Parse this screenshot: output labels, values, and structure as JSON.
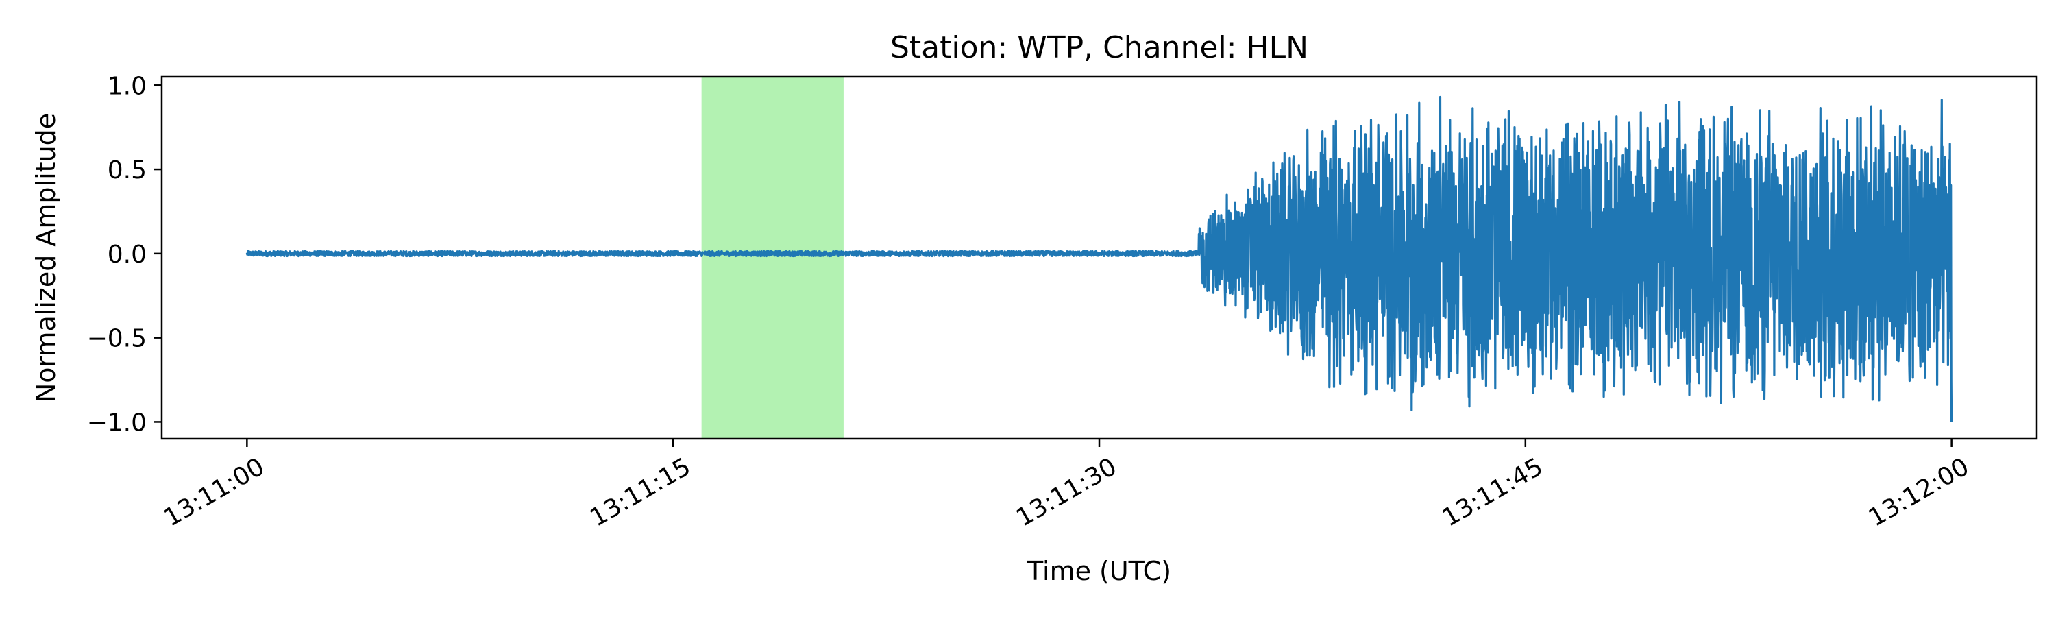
{
  "chart_data": {
    "type": "line",
    "title": "Station: WTP, Channel: HLN",
    "xlabel": "Time (UTC)",
    "ylabel": "Normalized Amplitude",
    "x_unit": "time (HH:MM:SS UTC)",
    "xlim": [
      "13:10:57",
      "13:12:03"
    ],
    "ylim": [
      -1.1,
      1.05
    ],
    "x_ticks": [
      "13:11:00",
      "13:11:15",
      "13:11:30",
      "13:11:45",
      "13:12:00"
    ],
    "y_ticks": [
      1.0,
      0.5,
      0.0,
      -0.5,
      -1.0
    ],
    "y_tick_labels": [
      "1.0",
      "0.5",
      "0.0",
      "−0.5",
      "−1.0"
    ],
    "grid": false,
    "highlight_span": {
      "start": "13:11:16",
      "end": "13:11:21",
      "color": "#b3f2b2"
    },
    "series": [
      {
        "color": "#1f77b4",
        "description_points": {
          "x": [
            "13:11:00",
            "13:11:33.5",
            "13:11:35.5",
            "13:11:38",
            "13:11:40",
            "13:11:41",
            "13:11:42",
            "13:11:43",
            "13:11:45",
            "13:11:48",
            "13:11:50",
            "13:11:52",
            "13:11:55",
            "13:11:58",
            "13:12:00"
          ],
          "y": [
            0.0,
            0.0,
            0.48,
            0.55,
            0.66,
            -0.93,
            0.93,
            -0.85,
            0.52,
            0.67,
            0.62,
            0.78,
            -0.66,
            0.69,
            -1.0
          ]
        },
        "quiet_amplitude": 0.015,
        "quiet_until": "13:11:33.5",
        "active_amplitude_max": 0.94,
        "end_value": -1.0
      }
    ]
  }
}
